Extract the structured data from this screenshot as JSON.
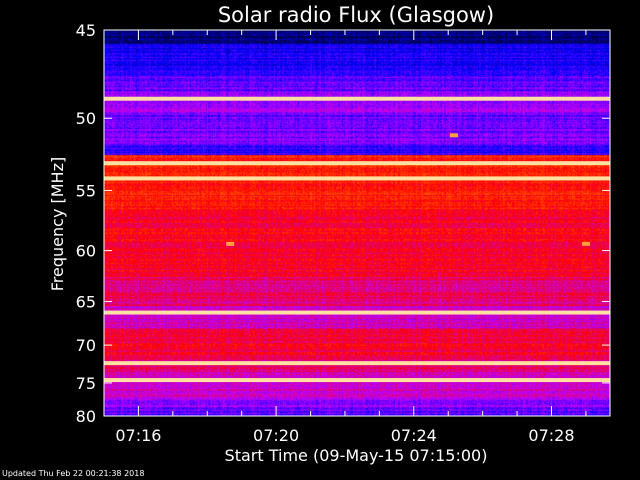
{
  "chart_data": {
    "type": "heatmap",
    "title": "Solar radio Flux (Glasgow)",
    "xlabel": "Start Time (09-May-15 07:15:00)",
    "ylabel": "Frequency [MHz]",
    "x_ticks": [
      "07:16",
      "07:20",
      "07:24",
      "07:28"
    ],
    "x_tick_minutes": [
      1,
      5,
      9,
      13
    ],
    "xlim_minutes": [
      0,
      14.7
    ],
    "y_ticks": [
      45,
      50,
      55,
      60,
      65,
      70,
      75,
      80
    ],
    "ylim": [
      45,
      80
    ],
    "y_scale": "reciprocal",
    "colormap": [
      "#000040",
      "#0000ff",
      "#c000ff",
      "#ff0000",
      "#ff8000",
      "#ffff80"
    ],
    "bright_bands_mhz": [
      48.8,
      53.0,
      54.1,
      66.2,
      72.3,
      74.6
    ],
    "spikes": [
      {
        "time": "07:18:40",
        "freq": 59.4
      },
      {
        "time": "07:25:10",
        "freq": 51.1
      },
      {
        "time": "07:29:00",
        "freq": 59.4
      }
    ]
  },
  "footer": "Updated Thu Feb 22 00:21:38 2018",
  "colors": {
    "background": "#000000",
    "axes": "#ffffff"
  }
}
